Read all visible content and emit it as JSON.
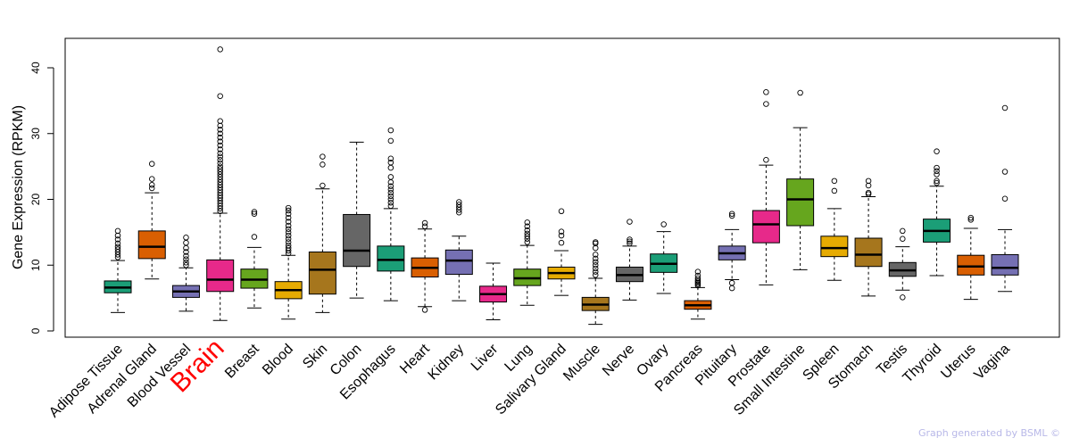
{
  "chart_data": {
    "type": "box",
    "title": "",
    "ylabel": "Gene Expression (RPKM)",
    "xlabel": "",
    "ylim": [
      -1,
      45
    ],
    "yticks": [
      0,
      10,
      20,
      30,
      40
    ],
    "highlight": "Brain",
    "highlight_color": "#ff0000",
    "box_colors": [
      "#1b9e77",
      "#d95f02",
      "#7570b3",
      "#e7298a",
      "#66a61e",
      "#e6ab02",
      "#a6761d",
      "#666666"
    ],
    "categories": [
      "Adipose Tissue",
      "Adrenal Gland",
      "Blood Vessel",
      "Brain",
      "Breast",
      "Blood",
      "Skin",
      "Colon",
      "Esophagus",
      "Heart",
      "Kidney",
      "Liver",
      "Lung",
      "Salivary Gland",
      "Muscle",
      "Nerve",
      "Ovary",
      "Pancreas",
      "Pituitary",
      "Prostate",
      "Small Intestine",
      "Spleen",
      "Stomach",
      "Testis",
      "Thyroid",
      "Uterus",
      "Vagina"
    ],
    "boxes": [
      {
        "name": "Adipose Tissue",
        "min": 2.8,
        "q1": 5.8,
        "median": 6.6,
        "q3": 7.6,
        "max": 10.7,
        "outliers": [
          11.2,
          11.6,
          12.0,
          12.4,
          12.8,
          13.3,
          13.9,
          14.5,
          15.2
        ]
      },
      {
        "name": "Adrenal Gland",
        "min": 7.9,
        "q1": 11.0,
        "median": 12.8,
        "q3": 15.2,
        "max": 21.0,
        "outliers": [
          21.7,
          22.2,
          23.1,
          25.4
        ]
      },
      {
        "name": "Blood Vessel",
        "min": 3.0,
        "q1": 5.1,
        "median": 6.0,
        "q3": 6.9,
        "max": 9.6,
        "outliers": [
          10.0,
          10.4,
          10.9,
          11.4,
          12.0,
          12.6,
          13.4,
          14.2
        ]
      },
      {
        "name": "Brain",
        "min": 1.6,
        "q1": 6.0,
        "median": 7.8,
        "q3": 10.8,
        "max": 17.9,
        "outliers": [
          18.2,
          18.6,
          19.0,
          19.4,
          19.8,
          20.2,
          20.6,
          21.0,
          21.4,
          21.8,
          22.2,
          22.6,
          23.0,
          23.4,
          23.8,
          24.2,
          24.6,
          25.0,
          25.5,
          26.0,
          26.5,
          27.0,
          27.6,
          28.2,
          28.8,
          29.4,
          30.0,
          30.6,
          31.2,
          31.9,
          35.7,
          42.8
        ]
      },
      {
        "name": "Breast",
        "min": 3.5,
        "q1": 6.5,
        "median": 7.8,
        "q3": 9.4,
        "max": 12.7,
        "outliers": [
          14.3,
          17.8,
          18.1
        ]
      },
      {
        "name": "Blood",
        "min": 1.8,
        "q1": 4.9,
        "median": 6.2,
        "q3": 7.5,
        "max": 11.5,
        "outliers": [
          11.8,
          12.2,
          12.6,
          13.0,
          13.5,
          14.0,
          14.5,
          15.0,
          15.5,
          16.0,
          16.6,
          17.2,
          17.8,
          18.3,
          18.7
        ]
      },
      {
        "name": "Skin",
        "min": 2.8,
        "q1": 5.6,
        "median": 9.3,
        "q3": 12.0,
        "max": 21.6,
        "outliers": [
          22.1,
          25.3,
          26.5
        ]
      },
      {
        "name": "Colon",
        "min": 5.0,
        "q1": 9.8,
        "median": 12.2,
        "q3": 17.7,
        "max": 28.7,
        "outliers": []
      },
      {
        "name": "Esophagus",
        "min": 4.6,
        "q1": 9.1,
        "median": 10.8,
        "q3": 12.9,
        "max": 18.6,
        "outliers": [
          19.0,
          19.5,
          20.0,
          20.5,
          21.0,
          21.5,
          22.0,
          22.6,
          23.4,
          24.8,
          25.6,
          26.2,
          28.9,
          30.5
        ]
      },
      {
        "name": "Heart",
        "min": 3.7,
        "q1": 8.2,
        "median": 9.6,
        "q3": 11.1,
        "max": 15.5,
        "outliers": [
          3.2,
          15.9,
          16.4
        ]
      },
      {
        "name": "Kidney",
        "min": 4.6,
        "q1": 8.6,
        "median": 10.7,
        "q3": 12.3,
        "max": 14.4,
        "outliers": [
          18.0,
          18.4,
          18.8,
          19.2,
          19.6
        ]
      },
      {
        "name": "Liver",
        "min": 1.7,
        "q1": 4.4,
        "median": 5.6,
        "q3": 6.8,
        "max": 10.3,
        "outliers": []
      },
      {
        "name": "Lung",
        "min": 3.9,
        "q1": 6.9,
        "median": 8.0,
        "q3": 9.4,
        "max": 13.0,
        "outliers": [
          13.5,
          14.0,
          14.4,
          14.8,
          15.3,
          15.9,
          16.5
        ]
      },
      {
        "name": "Salivary Gland",
        "min": 5.4,
        "q1": 7.9,
        "median": 8.8,
        "q3": 9.7,
        "max": 12.2,
        "outliers": [
          13.4,
          14.5,
          15.1,
          18.2
        ]
      },
      {
        "name": "Muscle",
        "min": 1.0,
        "q1": 3.1,
        "median": 4.0,
        "q3": 5.1,
        "max": 8.0,
        "outliers": [
          8.5,
          9.0,
          9.5,
          10.0,
          10.5,
          11.0,
          11.6,
          12.6,
          13.3,
          13.5
        ]
      },
      {
        "name": "Nerve",
        "min": 4.7,
        "q1": 7.5,
        "median": 8.5,
        "q3": 9.7,
        "max": 12.9,
        "outliers": [
          13.3,
          13.6,
          13.9,
          16.6
        ]
      },
      {
        "name": "Ovary",
        "min": 5.7,
        "q1": 8.9,
        "median": 10.2,
        "q3": 11.7,
        "max": 15.1,
        "outliers": [
          16.2
        ]
      },
      {
        "name": "Pancreas",
        "min": 1.8,
        "q1": 3.3,
        "median": 3.9,
        "q3": 4.6,
        "max": 6.6,
        "outliers": [
          6.9,
          7.1,
          7.3,
          7.5,
          7.7,
          8.0,
          8.4,
          9.0
        ]
      },
      {
        "name": "Pituitary",
        "min": 7.8,
        "q1": 10.8,
        "median": 11.8,
        "q3": 12.9,
        "max": 15.4,
        "outliers": [
          6.5,
          7.3,
          17.5,
          17.8
        ]
      },
      {
        "name": "Prostate",
        "min": 7.0,
        "q1": 13.4,
        "median": 16.2,
        "q3": 18.3,
        "max": 25.2,
        "outliers": [
          26.0,
          34.5,
          36.3
        ]
      },
      {
        "name": "Small Intestine",
        "min": 9.3,
        "q1": 16.0,
        "median": 20.0,
        "q3": 23.1,
        "max": 30.9,
        "outliers": [
          36.2
        ]
      },
      {
        "name": "Spleen",
        "min": 7.7,
        "q1": 11.3,
        "median": 12.6,
        "q3": 14.4,
        "max": 18.6,
        "outliers": [
          21.3,
          22.8
        ]
      },
      {
        "name": "Stomach",
        "min": 5.3,
        "q1": 9.8,
        "median": 11.6,
        "q3": 14.1,
        "max": 20.4,
        "outliers": [
          20.8,
          21.0,
          22.1,
          22.8
        ]
      },
      {
        "name": "Testis",
        "min": 6.2,
        "q1": 8.3,
        "median": 9.2,
        "q3": 10.4,
        "max": 12.8,
        "outliers": [
          5.1,
          14.0,
          15.2
        ]
      },
      {
        "name": "Thyroid",
        "min": 8.4,
        "q1": 13.5,
        "median": 15.2,
        "q3": 17.0,
        "max": 22.0,
        "outliers": [
          22.5,
          22.8,
          23.8,
          24.3,
          24.8,
          27.3
        ]
      },
      {
        "name": "Uterus",
        "min": 4.8,
        "q1": 8.5,
        "median": 9.8,
        "q3": 11.5,
        "max": 15.6,
        "outliers": [
          16.9,
          17.2
        ]
      },
      {
        "name": "Vagina",
        "min": 6.0,
        "q1": 8.5,
        "median": 9.6,
        "q3": 11.6,
        "max": 15.4,
        "outliers": [
          20.1,
          24.2,
          33.9
        ]
      }
    ]
  },
  "footer": {
    "credit": "Graph generated by BSML ©"
  }
}
